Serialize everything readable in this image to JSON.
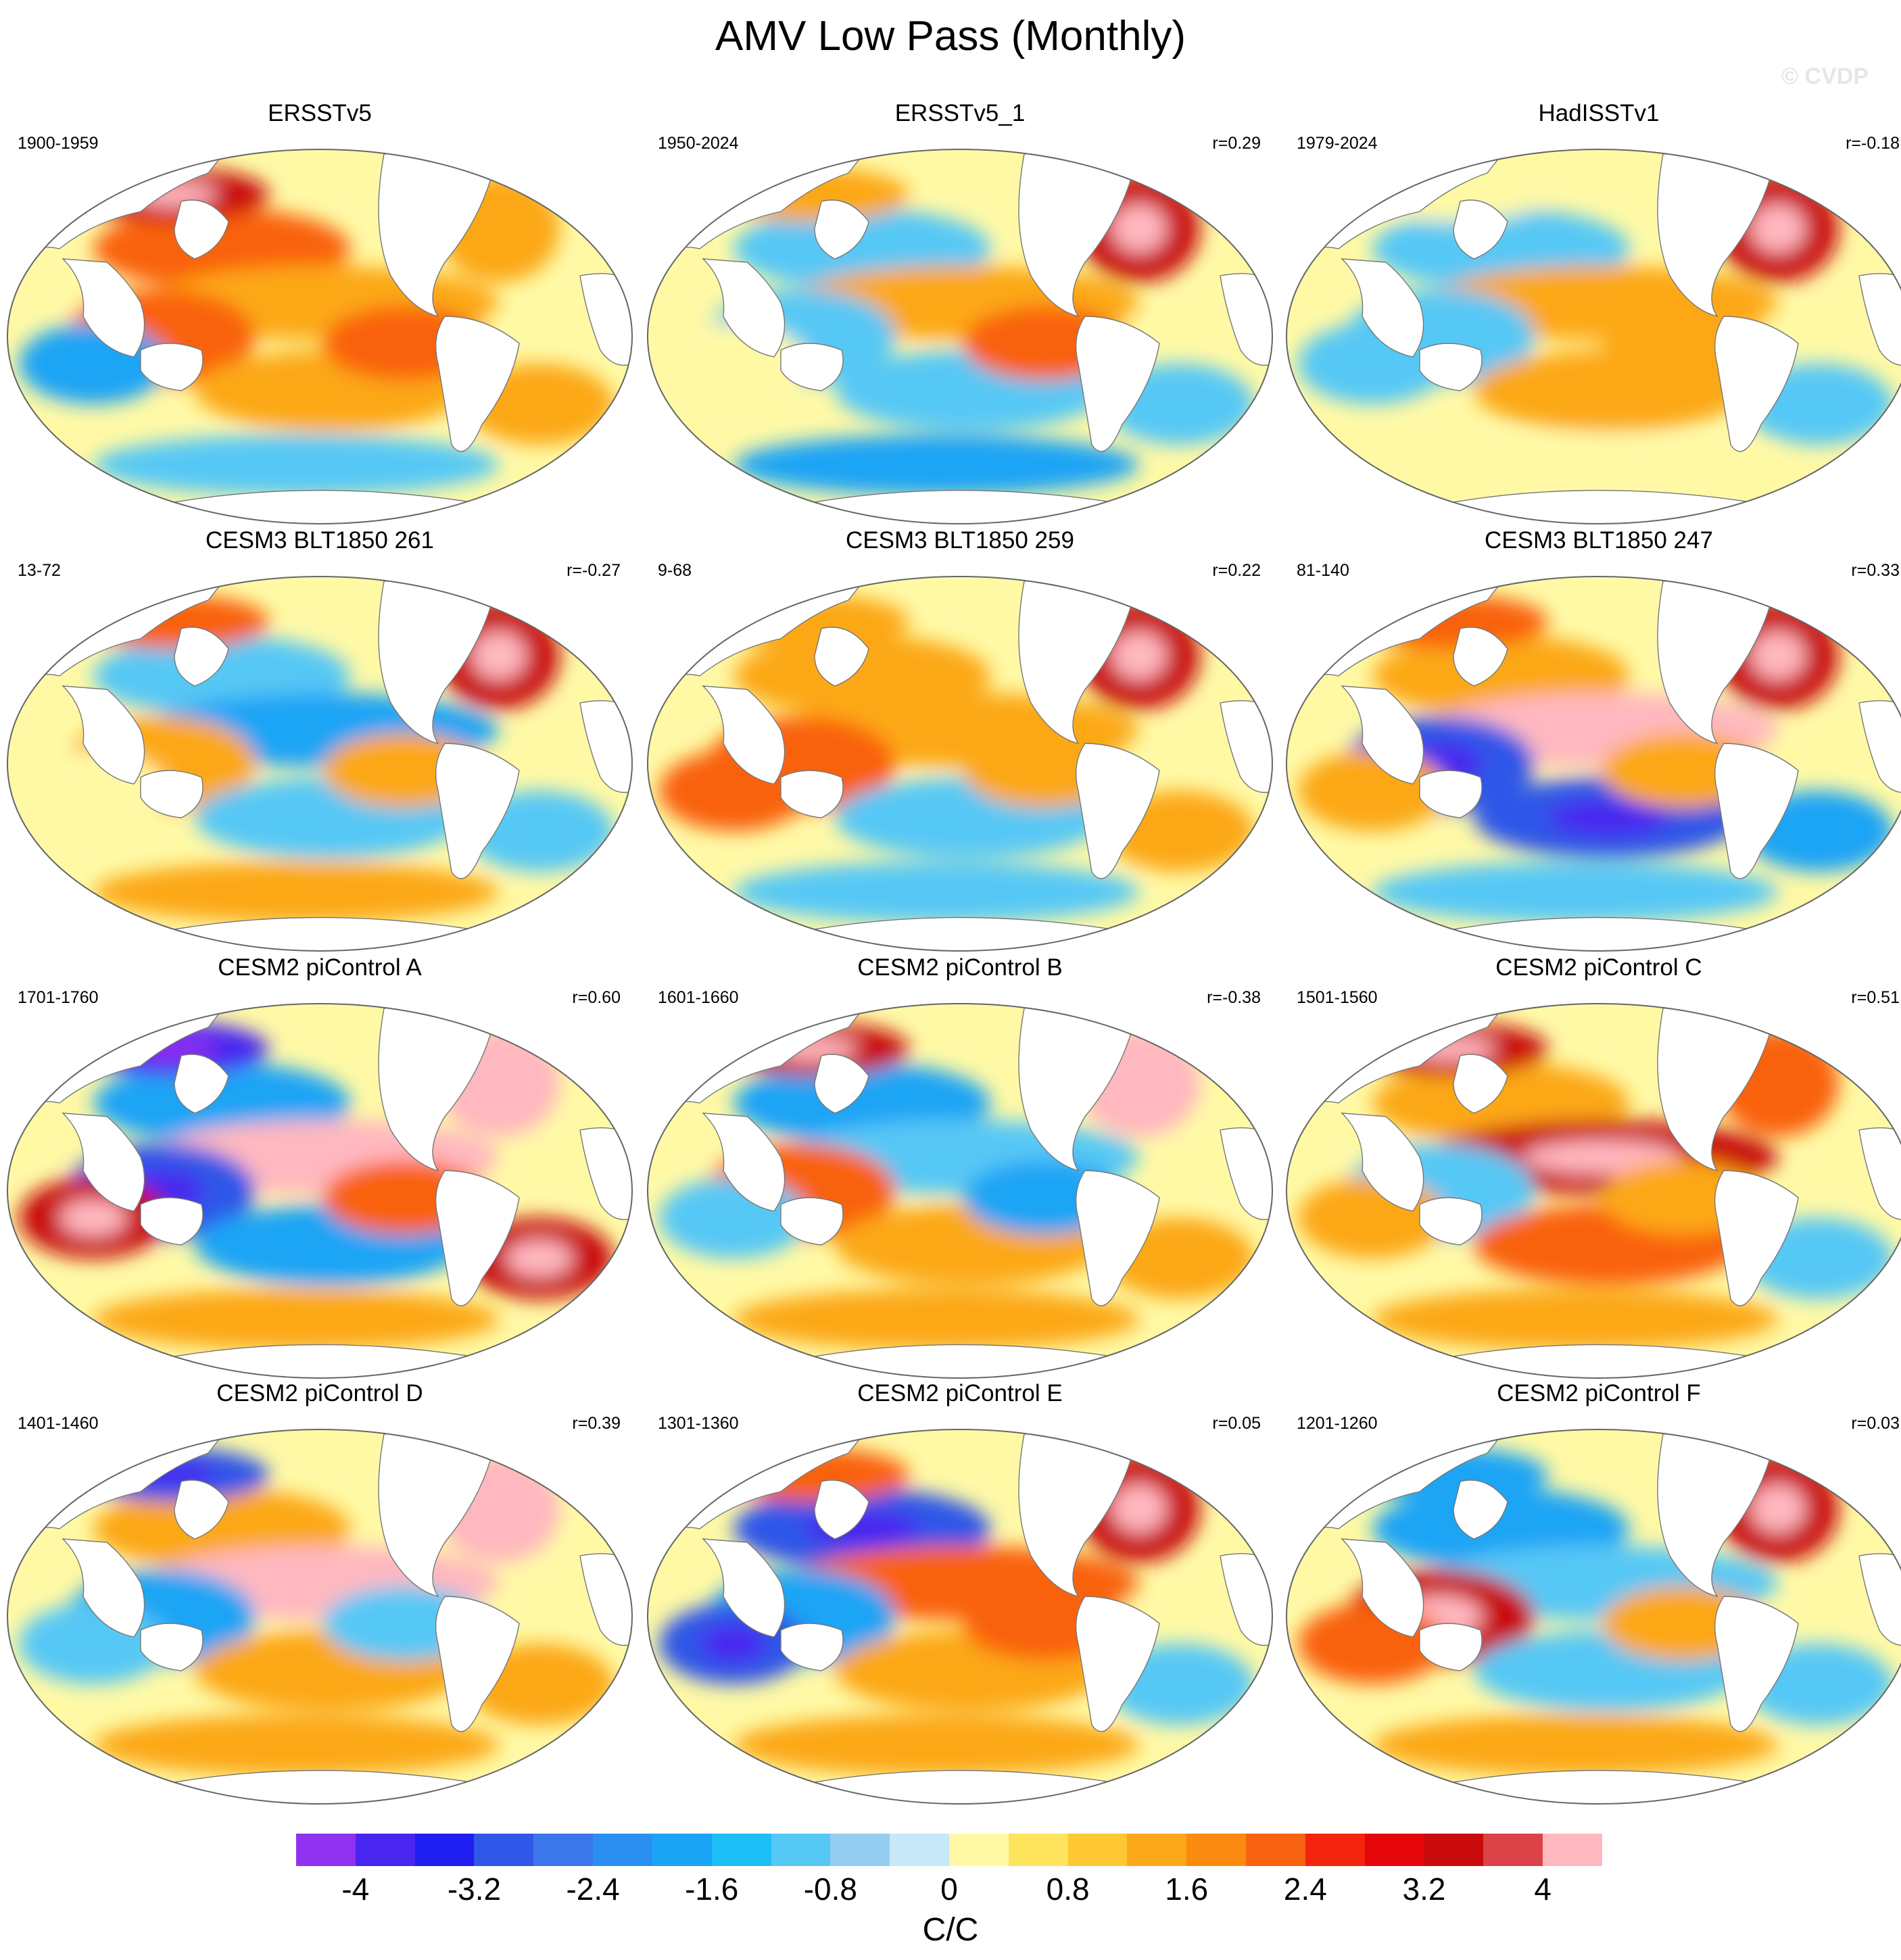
{
  "title": "AMV Low Pass (Monthly)",
  "watermark": "© CVDP",
  "panels": [
    {
      "title": "ERSSTv5",
      "years": "1900-1959",
      "corr": "",
      "pattern": [
        2,
        1,
        2,
        1,
        3,
        -2,
        1,
        2,
        1,
        -1
      ]
    },
    {
      "title": "ERSSTv5_1",
      "years": "1950-2024",
      "corr": "r=0.29",
      "pattern": [
        -1,
        1,
        -1,
        3,
        1,
        0,
        -1,
        2,
        -1,
        -2
      ]
    },
    {
      "title": "HadISSTv1",
      "years": "1979-2024",
      "corr": "r=-0.18",
      "pattern": [
        -1,
        1,
        -1,
        3,
        0,
        -1,
        1,
        1,
        -1,
        0
      ]
    },
    {
      "title": "CESM3 BLT1850 261",
      "years": "13-72",
      "corr": "r=-0.27",
      "pattern": [
        -1,
        -2,
        1,
        3,
        2,
        0,
        -1,
        1,
        -1,
        1
      ]
    },
    {
      "title": "CESM3 BLT1850 259",
      "years": "9-68",
      "corr": "r=0.22",
      "pattern": [
        1,
        1,
        2,
        3,
        1,
        2,
        -1,
        1,
        1,
        -1
      ]
    },
    {
      "title": "CESM3 BLT1850 247",
      "years": "81-140",
      "corr": "r=0.33",
      "pattern": [
        1,
        4,
        -3,
        3,
        2,
        1,
        -3,
        1,
        -2,
        -1
      ]
    },
    {
      "title": "CESM2 piControl A",
      "years": "1701-1760",
      "corr": "r=0.60",
      "pattern": [
        -2,
        4,
        -3,
        4,
        -4,
        3,
        -2,
        2,
        3,
        1
      ]
    },
    {
      "title": "CESM2 piControl B",
      "years": "1601-1660",
      "corr": "r=-0.38",
      "pattern": [
        -2,
        -1,
        2,
        4,
        3,
        -1,
        1,
        -2,
        1,
        1
      ]
    },
    {
      "title": "CESM2 piControl C",
      "years": "1501-1560",
      "corr": "r=0.51",
      "pattern": [
        1,
        3,
        -1,
        2,
        3,
        1,
        2,
        1,
        -1,
        1
      ]
    },
    {
      "title": "CESM2 piControl D",
      "years": "1401-1460",
      "corr": "r=0.39",
      "pattern": [
        1,
        4,
        -2,
        4,
        -3,
        -1,
        1,
        -1,
        1,
        1
      ]
    },
    {
      "title": "CESM2 piControl E",
      "years": "1301-1360",
      "corr": "r=0.05",
      "pattern": [
        -3,
        2,
        -2,
        3,
        2,
        -3,
        1,
        2,
        -1,
        1
      ]
    },
    {
      "title": "CESM2 piControl F",
      "years": "1201-1260",
      "corr": "r=0.03",
      "pattern": [
        -2,
        -1,
        3,
        3,
        -2,
        2,
        -1,
        1,
        -1,
        1
      ]
    }
  ],
  "legend": {
    "units": "C/C",
    "tick_labels": [
      "-4",
      "-3.2",
      "-2.4",
      "-1.6",
      "-0.8",
      "0",
      "0.8",
      "1.6",
      "2.4",
      "3.2",
      "4"
    ],
    "colors": [
      "#8f32f0",
      "#4826f0",
      "#1e1ef0",
      "#2f57e8",
      "#3c76eb",
      "#2a8ff0",
      "#1aa4f5",
      "#1cbff5",
      "#56c8f5",
      "#94cdf0",
      "#c6e8f7",
      "#fff9a6",
      "#fee35c",
      "#fdc834",
      "#fca818",
      "#fb8a10",
      "#f96210",
      "#f3250f",
      "#e4060a",
      "#c90b0e",
      "#dc4348",
      "#ffb8bf"
    ]
  }
}
